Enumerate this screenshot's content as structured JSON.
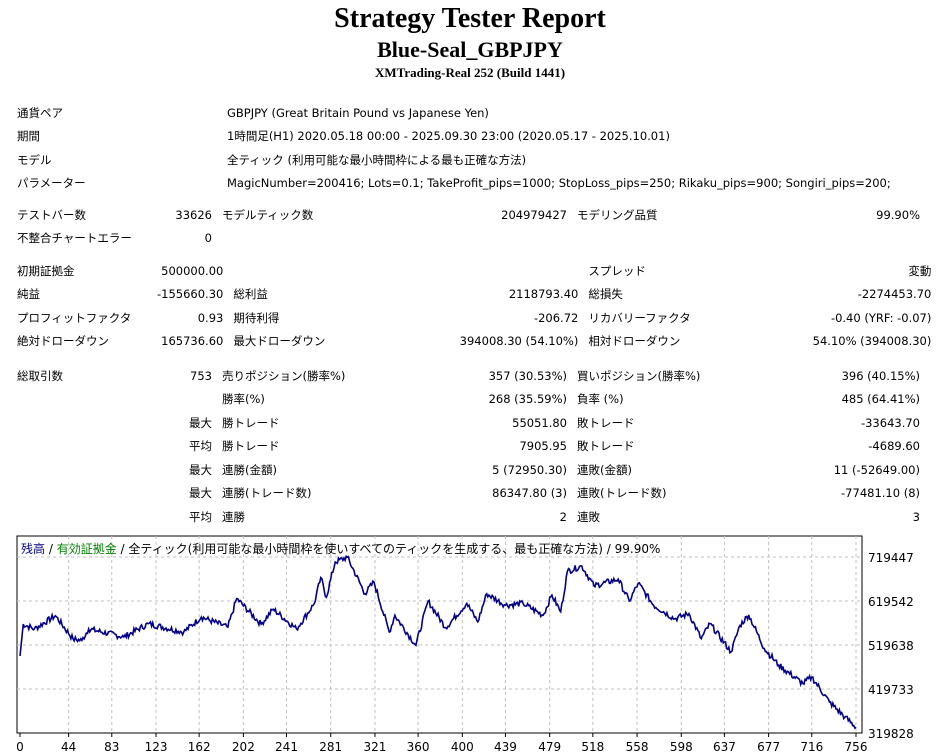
{
  "header": {
    "title": "Strategy Tester Report",
    "expert": "Blue-Seal_GBPJPY",
    "server": "XMTrading-Real 252 (Build 1441)"
  },
  "info": [
    {
      "label": "通貨ペア",
      "value": "GBPJPY (Great Britain Pound vs Japanese Yen)"
    },
    {
      "label": "期間",
      "value": "1時間足(H1) 2020.05.18 00:00 - 2025.09.30 23:00 (2020.05.17 - 2025.10.01)"
    },
    {
      "label": "モデル",
      "value": "全ティック (利用可能な最小時間枠による最も正確な方法)"
    },
    {
      "label": "パラメーター",
      "value": "MagicNumber=200416; Lots=0.1; TakeProfit_pips=1000; StopLoss_pips=250; Rikaku_pips=900; Songiri_pips=200;"
    }
  ],
  "stats1": [
    [
      "テストバー数",
      "33626",
      "モデルティック数",
      "204979427",
      "モデリング品質",
      "99.90%"
    ],
    [
      "不整合チャートエラー",
      "0",
      "",
      "",
      "",
      ""
    ]
  ],
  "stats2": [
    [
      "初期証拠金",
      "500000.00",
      "",
      "",
      "スプレッド",
      "変動"
    ],
    [
      "純益",
      "-155660.30",
      "総利益",
      "2118793.40",
      "総損失",
      "-2274453.70"
    ],
    [
      "プロフィットファクタ",
      "0.93",
      "期待利得",
      "-206.72",
      "リカバリーファクタ",
      "-0.40 (YRF: -0.07)"
    ],
    [
      "絶対ドローダウン",
      "165736.60",
      "最大ドローダウン",
      "394008.30 (54.10%)",
      "相対ドローダウン",
      "54.10% (394008.30)"
    ]
  ],
  "stats3": [
    [
      "総取引数",
      "753",
      "売りポジション(勝率%)",
      "357 (30.53%)",
      "買いポジション(勝率%)",
      "396 (40.15%)"
    ],
    [
      "",
      "",
      "勝率(%)",
      "268 (35.59%)",
      "負率 (%)",
      "485 (64.41%)"
    ],
    [
      "",
      "最大",
      "勝トレード",
      "55051.80",
      "敗トレード",
      "-33643.70"
    ],
    [
      "",
      "平均",
      "勝トレード",
      "7905.95",
      "敗トレード",
      "-4689.60"
    ],
    [
      "",
      "最大",
      "連勝(金額)",
      "5 (72950.30)",
      "連敗(金額)",
      "11 (-52649.00)"
    ],
    [
      "",
      "最大",
      "連勝(トレード数)",
      "86347.80 (3)",
      "連敗(トレード数)",
      "-77481.10 (8)"
    ],
    [
      "",
      "平均",
      "連勝",
      "2",
      "連敗",
      "3"
    ]
  ],
  "chart_data": {
    "type": "line",
    "legend": {
      "balance": "残高",
      "sep": " / ",
      "equity": "有効証拠金",
      "desc": " / 全ティック(利用可能な最小時間枠を使いすべてのティックを生成する、最も正確な方法) / 99.90%"
    },
    "colors": {
      "balance": "#00008b",
      "equity": "#008000",
      "grid": "#c0c0c0"
    },
    "ylim": [
      319828,
      739428
    ],
    "y_ticks": [
      "719447",
      "619542",
      "519638",
      "419733",
      "319828"
    ],
    "y_tick_values": [
      719447,
      619542,
      519638,
      419733,
      319828
    ],
    "x_ticks": [
      0,
      44,
      83,
      123,
      162,
      202,
      241,
      281,
      321,
      360,
      400,
      439,
      479,
      518,
      558,
      598,
      637,
      677,
      716,
      756
    ],
    "xlim": [
      0,
      762
    ],
    "series": [
      {
        "name": "残高",
        "points": [
          [
            0,
            495000
          ],
          [
            3,
            567000
          ],
          [
            13,
            556000
          ],
          [
            32,
            586000
          ],
          [
            48,
            533000
          ],
          [
            56,
            530000
          ],
          [
            62,
            556000
          ],
          [
            94,
            538000
          ],
          [
            116,
            568000
          ],
          [
            148,
            549000
          ],
          [
            164,
            583000
          ],
          [
            188,
            560000
          ],
          [
            196,
            625000
          ],
          [
            218,
            567000
          ],
          [
            229,
            601000
          ],
          [
            250,
            556000
          ],
          [
            266,
            613000
          ],
          [
            272,
            673000
          ],
          [
            277,
            628000
          ],
          [
            285,
            708000
          ],
          [
            296,
            719000
          ],
          [
            312,
            636000
          ],
          [
            320,
            663000
          ],
          [
            334,
            549000
          ],
          [
            339,
            587000
          ],
          [
            358,
            519000
          ],
          [
            369,
            619000
          ],
          [
            385,
            559000
          ],
          [
            404,
            614000
          ],
          [
            414,
            572000
          ],
          [
            422,
            636000
          ],
          [
            439,
            610000
          ],
          [
            455,
            614000
          ],
          [
            473,
            587000
          ],
          [
            481,
            633000
          ],
          [
            489,
            595000
          ],
          [
            495,
            687000
          ],
          [
            508,
            699000
          ],
          [
            519,
            654000
          ],
          [
            541,
            669000
          ],
          [
            551,
            619000
          ],
          [
            559,
            660000
          ],
          [
            573,
            610000
          ],
          [
            592,
            579000
          ],
          [
            605,
            591000
          ],
          [
            616,
            534000
          ],
          [
            624,
            568000
          ],
          [
            643,
            504000
          ],
          [
            651,
            564000
          ],
          [
            659,
            588000
          ],
          [
            673,
            512000
          ],
          [
            686,
            474000
          ],
          [
            708,
            432000
          ],
          [
            716,
            447000
          ],
          [
            732,
            390000
          ],
          [
            746,
            356000
          ],
          [
            756,
            333000
          ]
        ]
      }
    ]
  }
}
